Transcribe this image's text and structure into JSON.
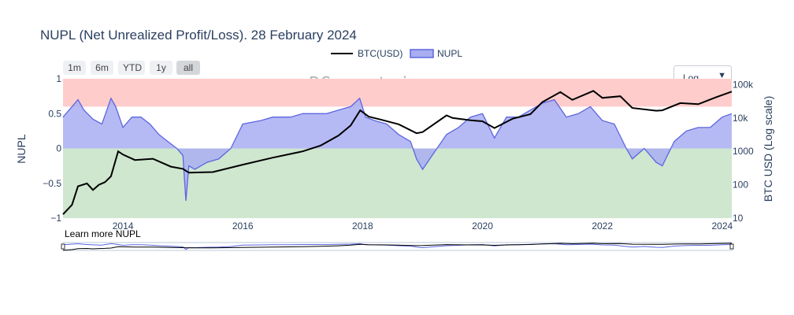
{
  "title": "NUPL (Net Unrealized Profit/Loss). 28 February 2024",
  "watermark": "BGeometrics.com",
  "learn_more": "Learn more NUPL",
  "range_buttons": [
    {
      "label": "1m",
      "active": false
    },
    {
      "label": "6m",
      "active": false
    },
    {
      "label": "YTD",
      "active": false
    },
    {
      "label": "1y",
      "active": false
    },
    {
      "label": "all",
      "active": true
    }
  ],
  "scale_dropdown": {
    "selected": "Log",
    "icon": "caret-down-icon"
  },
  "legend": [
    {
      "name": "BTC(USD)",
      "color": "#000000"
    },
    {
      "name": "NUPL",
      "color": "#5b66e0"
    }
  ],
  "colors": {
    "btc_line": "#000000",
    "nupl_line": "#5b66e0",
    "nupl_fill": "#a9aef2",
    "zone_high": "#ffcccc",
    "zone_low": "#cfe6cf",
    "axis_text": "#2a3f5f"
  },
  "chart_data": {
    "type": "line",
    "title": "NUPL (Net Unrealized Profit/Loss). 28 February 2024",
    "ylabel": "NUPL",
    "y2label": "BTC USD (Log scale)",
    "ylim": [
      -1,
      1
    ],
    "y2_scale": "log",
    "y2lim": [
      10,
      150000
    ],
    "xlim": [
      2013.0,
      2024.16
    ],
    "x_ticks": [
      2014,
      2016,
      2018,
      2020,
      2022,
      2024
    ],
    "y_ticks": [
      {
        "value": 1,
        "label": "1"
      },
      {
        "value": 0.5,
        "label": "0.5"
      },
      {
        "value": 0,
        "label": "0"
      },
      {
        "value": -0.5,
        "label": "−0.5"
      },
      {
        "value": -1,
        "label": "−1"
      }
    ],
    "y2_ticks": [
      {
        "value": 100000,
        "label": "100k"
      },
      {
        "value": 10000,
        "label": "10k"
      },
      {
        "value": 1000,
        "label": "1000"
      },
      {
        "value": 100,
        "label": "100"
      },
      {
        "value": 10,
        "label": "10"
      }
    ],
    "zones": [
      {
        "from": 0.6,
        "to": 1,
        "color": "#ffcccc"
      },
      {
        "from": -1,
        "to": 0,
        "color": "#cfe6cf"
      }
    ],
    "legend_position": "top-center",
    "series": [
      {
        "name": "NUPL",
        "axis": "left",
        "x": [
          2013.0,
          2013.15,
          2013.25,
          2013.35,
          2013.5,
          2013.65,
          2013.8,
          2013.88,
          2014.0,
          2014.15,
          2014.3,
          2014.45,
          2014.6,
          2014.75,
          2014.9,
          2015.0,
          2015.05,
          2015.1,
          2015.2,
          2015.4,
          2015.6,
          2015.8,
          2016.0,
          2016.3,
          2016.5,
          2016.8,
          2017.0,
          2017.2,
          2017.4,
          2017.6,
          2017.8,
          2017.95,
          2018.05,
          2018.2,
          2018.4,
          2018.6,
          2018.8,
          2018.9,
          2019.0,
          2019.2,
          2019.4,
          2019.6,
          2019.8,
          2020.0,
          2020.2,
          2020.4,
          2020.6,
          2020.8,
          2021.0,
          2021.2,
          2021.4,
          2021.6,
          2021.8,
          2022.0,
          2022.2,
          2022.4,
          2022.5,
          2022.7,
          2022.9,
          2023.0,
          2023.2,
          2023.4,
          2023.6,
          2023.8,
          2024.0,
          2024.16
        ],
        "values": [
          0.45,
          0.6,
          0.7,
          0.55,
          0.42,
          0.35,
          0.72,
          0.6,
          0.3,
          0.45,
          0.45,
          0.35,
          0.2,
          0.1,
          0.0,
          -0.1,
          -0.75,
          -0.25,
          -0.3,
          -0.2,
          -0.15,
          0.0,
          0.35,
          0.4,
          0.45,
          0.45,
          0.5,
          0.5,
          0.5,
          0.55,
          0.6,
          0.72,
          0.45,
          0.4,
          0.35,
          0.2,
          0.1,
          -0.15,
          -0.3,
          -0.05,
          0.2,
          0.3,
          0.45,
          0.5,
          0.15,
          0.45,
          0.45,
          0.55,
          0.65,
          0.7,
          0.45,
          0.5,
          0.6,
          0.4,
          0.35,
          0.0,
          -0.15,
          0.0,
          -0.2,
          -0.25,
          0.1,
          0.25,
          0.3,
          0.3,
          0.45,
          0.5
        ]
      },
      {
        "name": "BTC(USD)",
        "axis": "right",
        "x": [
          2013.0,
          2013.15,
          2013.25,
          2013.4,
          2013.5,
          2013.6,
          2013.7,
          2013.8,
          2013.92,
          2014.0,
          2014.2,
          2014.5,
          2014.8,
          2015.0,
          2015.1,
          2015.5,
          2016.0,
          2016.5,
          2017.0,
          2017.3,
          2017.6,
          2017.8,
          2017.96,
          2018.1,
          2018.3,
          2018.6,
          2018.9,
          2019.0,
          2019.4,
          2019.5,
          2019.8,
          2020.0,
          2020.2,
          2020.5,
          2020.8,
          2021.0,
          2021.3,
          2021.5,
          2021.85,
          2022.0,
          2022.3,
          2022.5,
          2022.9,
          2023.0,
          2023.3,
          2023.6,
          2023.9,
          2024.16
        ],
        "values": [
          13,
          25,
          90,
          110,
          70,
          100,
          120,
          180,
          1000,
          800,
          550,
          600,
          350,
          300,
          230,
          240,
          400,
          650,
          1000,
          1500,
          3000,
          6000,
          17000,
          11000,
          9000,
          6500,
          3500,
          3800,
          12000,
          10000,
          8500,
          8000,
          5000,
          9500,
          13000,
          30000,
          60000,
          35000,
          65000,
          40000,
          45000,
          20000,
          16500,
          17000,
          28000,
          26000,
          42000,
          62000
        ]
      }
    ]
  }
}
